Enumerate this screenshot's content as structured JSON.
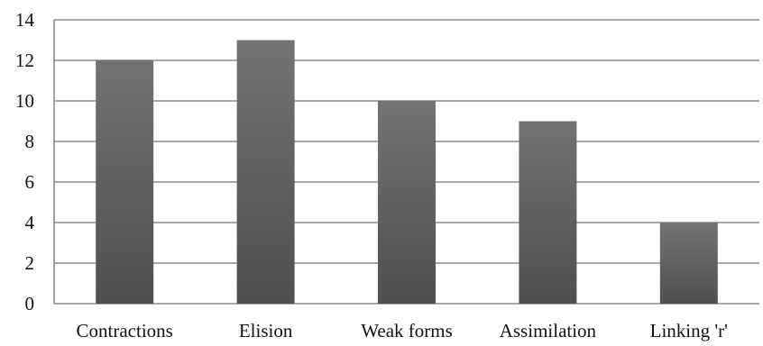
{
  "chart_data": {
    "type": "bar",
    "title": "",
    "xlabel": "",
    "ylabel": "",
    "categories": [
      "Contractions",
      "Elision",
      "Weak forms",
      "Assimilation",
      "Linking 'r'"
    ],
    "values": [
      12,
      13,
      10,
      9,
      4
    ],
    "ylim": [
      0,
      14
    ],
    "yticks": [
      "0",
      "2",
      "4",
      "6",
      "8",
      "10",
      "12",
      "14"
    ],
    "grid": true,
    "legend": "none",
    "colors": {
      "bar_top": "#737373",
      "bar_bottom": "#4f4f4f",
      "grid": "#8c8c8c",
      "text": "#111111"
    }
  }
}
